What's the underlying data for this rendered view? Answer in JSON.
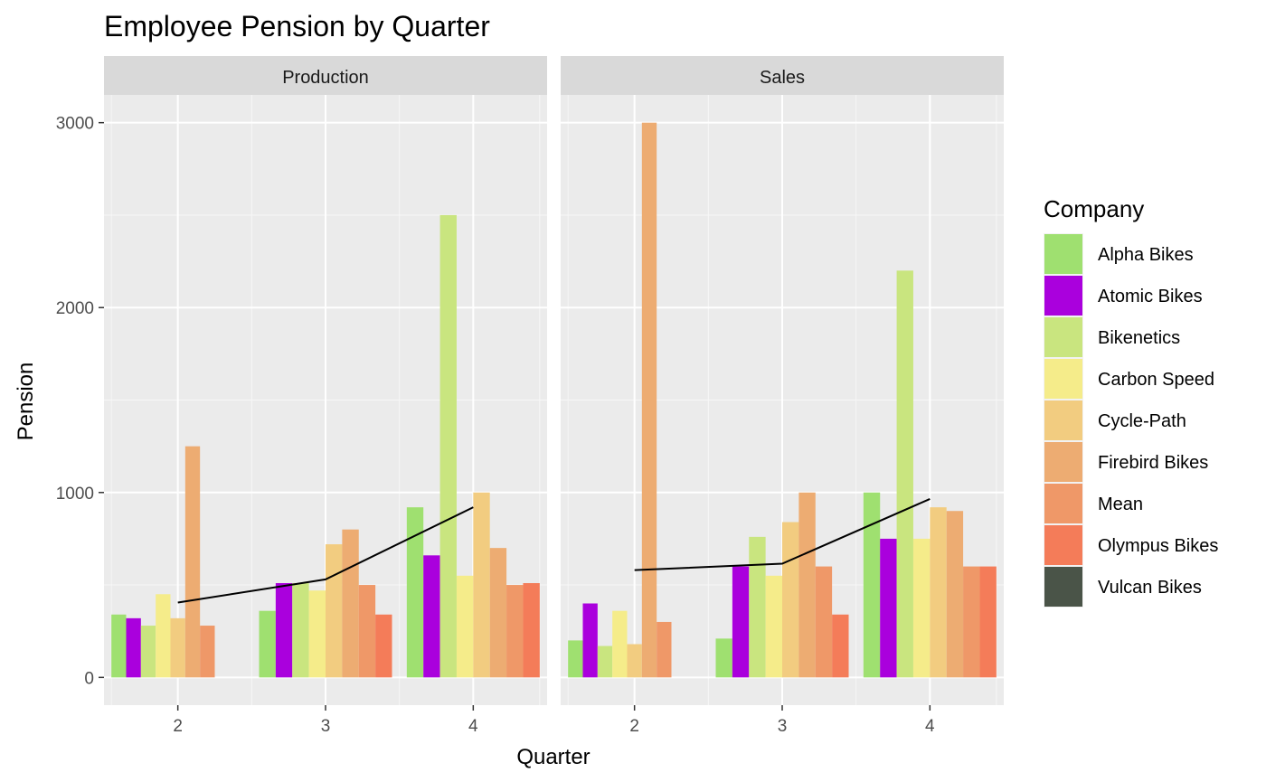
{
  "chart_data": {
    "type": "bar",
    "title": "Employee Pension by Quarter",
    "xlabel": "Quarter",
    "ylabel": "Pension",
    "ylim": [
      -150,
      3150
    ],
    "y_ticks": [
      "0",
      "1000",
      "2000",
      "3000"
    ],
    "x_ticks": [
      "2",
      "3",
      "4"
    ],
    "grid": true,
    "legend_title": "Company",
    "legend_position": "right",
    "legend": [
      {
        "name": "Alpha Bikes",
        "color": "#9fe070"
      },
      {
        "name": "Atomic Bikes",
        "color": "#aa00dd"
      },
      {
        "name": "Bikenetics",
        "color": "#c9e57f"
      },
      {
        "name": "Carbon Speed",
        "color": "#f5ec8a"
      },
      {
        "name": "Cycle-Path",
        "color": "#f2cc80"
      },
      {
        "name": "Firebird Bikes",
        "color": "#edac72"
      },
      {
        "name": "Mean",
        "color": "#ef9868"
      },
      {
        "name": "Olympus Bikes",
        "color": "#f47c59"
      },
      {
        "name": "Vulcan Bikes",
        "color": "#4a5448"
      }
    ],
    "panels": [
      {
        "name": "Production",
        "bars": [
          {
            "x": 2,
            "values": [
              340,
              320,
              280,
              450,
              320,
              1250,
              280,
              null,
              null
            ]
          },
          {
            "x": 3,
            "values": [
              360,
              510,
              510,
              470,
              720,
              800,
              500,
              340
            ]
          },
          {
            "x": 4,
            "values": [
              920,
              660,
              2500,
              550,
              1000,
              700,
              500,
              510
            ]
          }
        ],
        "mean_line": [
          {
            "x": 2,
            "y": 405
          },
          {
            "x": 3,
            "y": 530
          },
          {
            "x": 4,
            "y": 920
          }
        ]
      },
      {
        "name": "Sales",
        "bars": [
          {
            "x": 2,
            "values": [
              200,
              400,
              170,
              360,
              180,
              3000,
              300,
              null,
              null
            ]
          },
          {
            "x": 3,
            "values": [
              210,
              600,
              760,
              550,
              840,
              1000,
              600,
              340
            ]
          },
          {
            "x": 4,
            "values": [
              1000,
              750,
              2200,
              750,
              920,
              900,
              600,
              600
            ]
          }
        ],
        "mean_line": [
          {
            "x": 2,
            "y": 580
          },
          {
            "x": 3,
            "y": 615
          },
          {
            "x": 4,
            "y": 965
          }
        ]
      }
    ]
  }
}
